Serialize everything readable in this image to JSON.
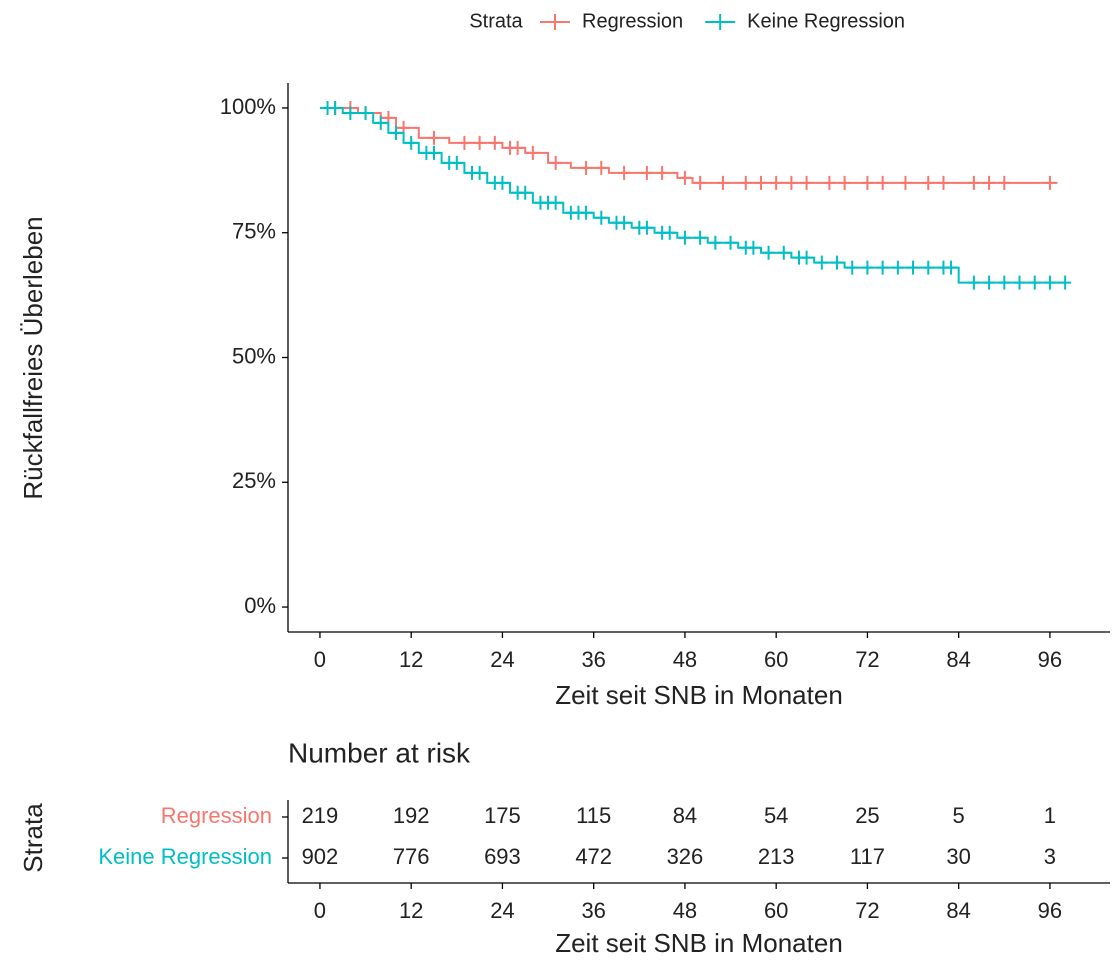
{
  "chart_data": {
    "type": "km",
    "legend_title": "Strata",
    "legend_position": "top",
    "xlabel": "Zeit seit SNB in Monaten",
    "ylabel": "Rückfallfreies Überleben",
    "xlim": [
      -4.2,
      103.9
    ],
    "xticks": [
      0,
      12,
      24,
      36,
      48,
      60,
      72,
      84,
      96
    ],
    "ylim": [
      -5,
      105
    ],
    "yticks": [
      {
        "value": 0,
        "label": "0%"
      },
      {
        "value": 25,
        "label": "25%"
      },
      {
        "value": 50,
        "label": "50%"
      },
      {
        "value": 75,
        "label": "75%"
      },
      {
        "value": 100,
        "label": "100%"
      }
    ],
    "series": [
      {
        "name": "Regression",
        "color": "#F8766D",
        "x": [
          0,
          5,
          8,
          10,
          13,
          17,
          24,
          27,
          30,
          33,
          38,
          47,
          49,
          97
        ],
        "values": [
          100,
          99,
          98,
          96,
          94,
          93,
          92,
          91,
          89,
          88,
          87,
          86,
          85,
          85
        ],
        "censor": {
          "x": [
            2,
            4,
            6,
            9,
            11,
            15,
            19,
            21,
            23,
            25,
            26,
            28,
            31,
            35,
            37,
            40,
            43,
            45,
            48,
            50,
            53,
            56,
            58,
            60,
            62,
            64,
            67,
            69,
            72,
            74,
            77,
            80,
            82,
            86,
            88,
            90,
            96
          ],
          "values": [
            100,
            100,
            99,
            98,
            96,
            94,
            93,
            93,
            93,
            92,
            92,
            91,
            89,
            88,
            88,
            87,
            87,
            87,
            86,
            85,
            85,
            85,
            85,
            85,
            85,
            85,
            85,
            85,
            85,
            85,
            85,
            85,
            85,
            85,
            85,
            85,
            85
          ]
        },
        "at_risk": [
          219,
          192,
          175,
          115,
          84,
          54,
          25,
          5,
          1
        ]
      },
      {
        "name": "Keine Regression",
        "color": "#00BFC4",
        "x": [
          0,
          3,
          7,
          9,
          11,
          13,
          16,
          19,
          22,
          25,
          28,
          32,
          36,
          38,
          41,
          44,
          47,
          51,
          55,
          58,
          62,
          65,
          69,
          84,
          98
        ],
        "values": [
          100,
          99,
          97,
          95,
          93,
          91,
          89,
          87,
          85,
          83,
          81,
          79,
          78,
          77,
          76,
          75,
          74,
          73,
          72,
          71,
          70,
          69,
          68,
          65,
          65
        ],
        "censor": {
          "x": [
            1,
            2,
            4,
            6,
            8,
            10,
            12,
            14,
            15,
            17,
            18,
            20,
            21,
            23,
            24,
            26,
            27,
            29,
            30,
            31,
            33,
            34,
            35,
            37,
            39,
            40,
            42,
            43,
            45,
            46,
            48,
            50,
            52,
            54,
            56,
            57,
            59,
            61,
            63,
            64,
            66,
            68,
            70,
            72,
            74,
            76,
            78,
            80,
            82,
            83,
            86,
            88,
            90,
            92,
            94,
            96,
            98
          ],
          "values": [
            100,
            100,
            99,
            99,
            97,
            95,
            93,
            91,
            91,
            89,
            89,
            87,
            87,
            85,
            85,
            83,
            83,
            81,
            81,
            81,
            79,
            79,
            79,
            78,
            77,
            77,
            76,
            76,
            75,
            75,
            74,
            74,
            73,
            73,
            72,
            72,
            71,
            71,
            70,
            70,
            69,
            69,
            68,
            68,
            68,
            68,
            68,
            68,
            68,
            68,
            65,
            65,
            65,
            65,
            65,
            65,
            65
          ]
        },
        "at_risk": [
          902,
          776,
          693,
          472,
          326,
          213,
          117,
          30,
          3
        ]
      }
    ],
    "risk_table": {
      "title": "Number at risk",
      "ylabel": "Strata",
      "xlabel": "Zeit seit SNB in Monaten"
    }
  }
}
